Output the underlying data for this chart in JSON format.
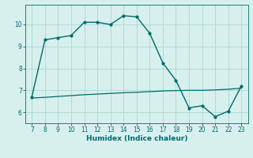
{
  "xlabel": "Humidex (Indice chaleur)",
  "background_color": "#d7f0ee",
  "line_color": "#006b6b",
  "grid_color": "#aedad7",
  "x_main": [
    7,
    8,
    9,
    10,
    11,
    12,
    13,
    14,
    15,
    16,
    17,
    18,
    19,
    20,
    21,
    22,
    23
  ],
  "y_main": [
    6.7,
    9.3,
    9.4,
    9.5,
    10.1,
    10.1,
    10.0,
    10.4,
    10.35,
    9.6,
    8.25,
    7.45,
    6.2,
    6.3,
    5.8,
    6.05,
    7.2
  ],
  "x_flat": [
    7,
    8,
    9,
    10,
    11,
    12,
    13,
    14,
    15,
    16,
    17,
    18,
    19,
    20,
    21,
    22,
    23
  ],
  "y_flat": [
    6.65,
    6.68,
    6.72,
    6.76,
    6.8,
    6.83,
    6.86,
    6.89,
    6.91,
    6.94,
    6.97,
    6.99,
    7.0,
    7.0,
    7.02,
    7.05,
    7.1
  ],
  "xlim": [
    6.5,
    23.5
  ],
  "ylim": [
    5.5,
    10.9
  ],
  "xticks": [
    7,
    8,
    9,
    10,
    11,
    12,
    13,
    14,
    15,
    16,
    17,
    18,
    19,
    20,
    21,
    22,
    23
  ],
  "yticks": [
    6,
    7,
    8,
    9,
    10
  ],
  "tick_fontsize": 5.5,
  "xlabel_fontsize": 6.5
}
